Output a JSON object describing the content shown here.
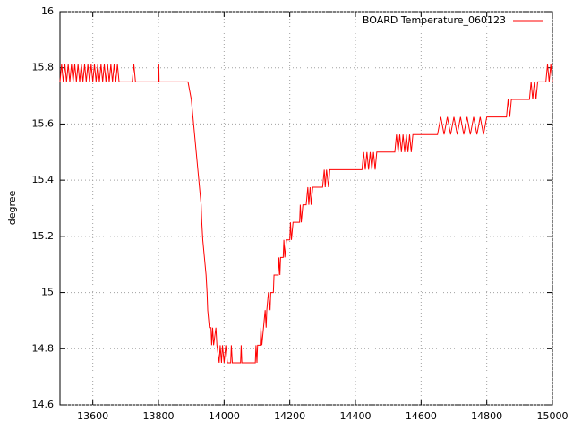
{
  "chart_data": {
    "type": "line",
    "y_label": "degree",
    "xlim": [
      13500,
      15000
    ],
    "ylim": [
      14.6,
      16
    ],
    "xticks": [
      13600,
      13800,
      14000,
      14200,
      14400,
      14600,
      14800,
      15000
    ],
    "yticks": [
      14.6,
      14.8,
      15,
      15.2,
      15.4,
      15.6,
      15.8,
      16
    ],
    "grid": true,
    "legend": "top-right",
    "series": [
      {
        "name": "BOARD Temperature_060123",
        "color": "#ff0000",
        "x": [
          13500,
          13505,
          13510,
          13515,
          13520,
          13525,
          13530,
          13535,
          13540,
          13545,
          13550,
          13555,
          13560,
          13565,
          13570,
          13575,
          13580,
          13585,
          13590,
          13595,
          13600,
          13605,
          13610,
          13615,
          13620,
          13625,
          13630,
          13635,
          13640,
          13645,
          13650,
          13655,
          13660,
          13665,
          13670,
          13675,
          13680,
          13690,
          13720,
          13725,
          13730,
          13800,
          13801,
          13802,
          13890,
          13900,
          13905,
          13910,
          13915,
          13920,
          13925,
          13930,
          13932,
          13935,
          13940,
          13945,
          13948,
          13950,
          13955,
          13960,
          13962,
          13965,
          13968,
          13975,
          13978,
          13985,
          13988,
          13992,
          13995,
          14000,
          14005,
          14010,
          14020,
          14022,
          14025,
          14050,
          14052,
          14054,
          14095,
          14097,
          14100,
          14102,
          14110,
          14112,
          14115,
          14120,
          14125,
          14128,
          14130,
          14135,
          14140,
          14142,
          14150,
          14152,
          14165,
          14167,
          14170,
          14172,
          14180,
          14182,
          14185,
          14190,
          14200,
          14202,
          14205,
          14210,
          14230,
          14232,
          14235,
          14240,
          14250,
          14255,
          14258,
          14262,
          14265,
          14270,
          14300,
          14305,
          14308,
          14312,
          14318,
          14322,
          14335,
          14420,
          14425,
          14430,
          14435,
          14440,
          14445,
          14450,
          14455,
          14460,
          14465,
          14470,
          14520,
          14525,
          14530,
          14535,
          14540,
          14545,
          14550,
          14555,
          14560,
          14565,
          14570,
          14575,
          14580,
          14650,
          14660,
          14670,
          14680,
          14690,
          14700,
          14710,
          14720,
          14730,
          14740,
          14750,
          14760,
          14770,
          14780,
          14790,
          14800,
          14860,
          14865,
          14870,
          14875,
          14880,
          14930,
          14935,
          14940,
          14945,
          14950,
          14955,
          14960,
          14980,
          14985,
          14990,
          14995,
          15000
        ],
        "values": [
          15.75,
          15.8125,
          15.75,
          15.8125,
          15.75,
          15.8125,
          15.75,
          15.8125,
          15.75,
          15.8125,
          15.75,
          15.8125,
          15.75,
          15.8125,
          15.75,
          15.8125,
          15.75,
          15.8125,
          15.75,
          15.8125,
          15.75,
          15.8125,
          15.75,
          15.8125,
          15.75,
          15.8125,
          15.75,
          15.8125,
          15.75,
          15.8125,
          15.75,
          15.8125,
          15.75,
          15.8125,
          15.75,
          15.8125,
          15.75,
          15.75,
          15.75,
          15.8125,
          15.75,
          15.75,
          15.8125,
          15.75,
          15.75,
          15.6875,
          15.625,
          15.5625,
          15.5,
          15.4375,
          15.375,
          15.3125,
          15.25,
          15.1875,
          15.125,
          15.0625,
          15.0,
          14.9375,
          14.875,
          14.875,
          14.8125,
          14.875,
          14.8125,
          14.875,
          14.8125,
          14.75,
          14.8125,
          14.75,
          14.8125,
          14.75,
          14.8125,
          14.75,
          14.75,
          14.8125,
          14.75,
          14.75,
          14.8125,
          14.75,
          14.75,
          14.8125,
          14.75,
          14.8125,
          14.8125,
          14.875,
          14.8125,
          14.875,
          14.9375,
          14.875,
          14.9375,
          15.0,
          14.9375,
          15.0,
          15.0,
          15.0625,
          15.0625,
          15.125,
          15.0625,
          15.125,
          15.125,
          15.1875,
          15.125,
          15.1875,
          15.1875,
          15.25,
          15.1875,
          15.25,
          15.25,
          15.3125,
          15.25,
          15.3125,
          15.3125,
          15.375,
          15.3125,
          15.375,
          15.3125,
          15.375,
          15.375,
          15.4375,
          15.375,
          15.4375,
          15.375,
          15.4375,
          15.4375,
          15.4375,
          15.5,
          15.4375,
          15.5,
          15.4375,
          15.5,
          15.4375,
          15.5,
          15.4375,
          15.5,
          15.5,
          15.5,
          15.5625,
          15.5,
          15.5625,
          15.5,
          15.5625,
          15.5,
          15.5625,
          15.5,
          15.5625,
          15.5,
          15.5625,
          15.5625,
          15.5625,
          15.625,
          15.5625,
          15.625,
          15.5625,
          15.625,
          15.5625,
          15.625,
          15.5625,
          15.625,
          15.5625,
          15.625,
          15.5625,
          15.625,
          15.5625,
          15.625,
          15.625,
          15.6875,
          15.625,
          15.6875,
          15.6875,
          15.6875,
          15.75,
          15.6875,
          15.75,
          15.6875,
          15.75,
          15.75,
          15.75,
          15.8125,
          15.75,
          15.8125,
          15.75
        ]
      }
    ]
  }
}
